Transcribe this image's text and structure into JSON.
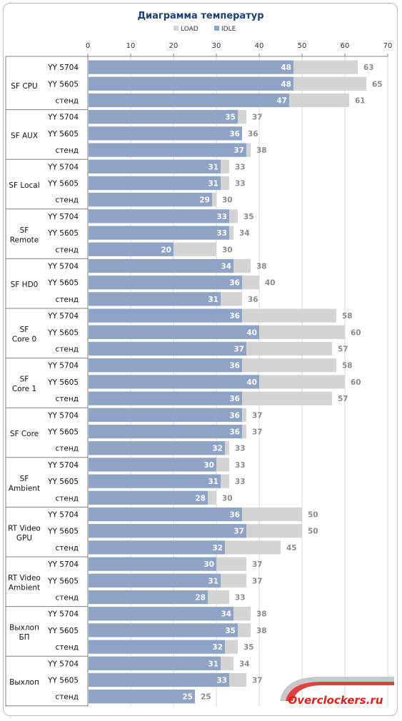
{
  "chart_data": {
    "type": "bar",
    "orientation": "horizontal",
    "stacked_overlay": true,
    "title": "Диаграмма температур",
    "legend": [
      "LOAD",
      "IDLE"
    ],
    "legend_position": "top",
    "xlim": [
      0,
      70
    ],
    "xticks": [
      0,
      10,
      20,
      30,
      40,
      50,
      60,
      70
    ],
    "grid": true,
    "colors": {
      "IDLE": "#8fa3c6",
      "LOAD": "#d4d4d4"
    },
    "groups": [
      {
        "name": "SF CPU",
        "rows": [
          {
            "label": "YY 5704",
            "idle": 48,
            "load": 63
          },
          {
            "label": "YY 5605",
            "idle": 48,
            "load": 65
          },
          {
            "label": "стенд",
            "idle": 47,
            "load": 61
          }
        ]
      },
      {
        "name": "SF AUX",
        "rows": [
          {
            "label": "YY 5704",
            "idle": 35,
            "load": 37
          },
          {
            "label": "YY 5605",
            "idle": 36,
            "load": 36
          },
          {
            "label": "стенд",
            "idle": 37,
            "load": 38
          }
        ]
      },
      {
        "name": "SF Local",
        "rows": [
          {
            "label": "YY 5704",
            "idle": 31,
            "load": 33
          },
          {
            "label": "YY 5605",
            "idle": 31,
            "load": 33
          },
          {
            "label": "стенд",
            "idle": 29,
            "load": 30
          }
        ]
      },
      {
        "name": "SF\nRemote",
        "rows": [
          {
            "label": "YY 5704",
            "idle": 33,
            "load": 35
          },
          {
            "label": "YY 5605",
            "idle": 33,
            "load": 34
          },
          {
            "label": "стенд",
            "idle": 20,
            "load": 30
          }
        ]
      },
      {
        "name": "SF HD0",
        "rows": [
          {
            "label": "YY 5704",
            "idle": 34,
            "load": 38
          },
          {
            "label": "YY 5605",
            "idle": 36,
            "load": 40
          },
          {
            "label": "стенд",
            "idle": 31,
            "load": 36
          }
        ]
      },
      {
        "name": "SF\nCore 0",
        "rows": [
          {
            "label": "YY 5704",
            "idle": 36,
            "load": 58
          },
          {
            "label": "YY 5605",
            "idle": 40,
            "load": 60
          },
          {
            "label": "стенд",
            "idle": 37,
            "load": 57
          }
        ]
      },
      {
        "name": "SF\nCore 1",
        "rows": [
          {
            "label": "YY 5704",
            "idle": 36,
            "load": 58
          },
          {
            "label": "YY 5605",
            "idle": 40,
            "load": 60
          },
          {
            "label": "стенд",
            "idle": 36,
            "load": 57
          }
        ]
      },
      {
        "name": "SF Core",
        "rows": [
          {
            "label": "YY 5704",
            "idle": 36,
            "load": 37
          },
          {
            "label": "YY 5605",
            "idle": 36,
            "load": 37
          },
          {
            "label": "стенд",
            "idle": 32,
            "load": 33
          }
        ]
      },
      {
        "name": "SF\nAmbient",
        "rows": [
          {
            "label": "YY 5704",
            "idle": 30,
            "load": 33
          },
          {
            "label": "YY 5605",
            "idle": 31,
            "load": 33
          },
          {
            "label": "стенд",
            "idle": 28,
            "load": 30
          }
        ]
      },
      {
        "name": "RT Video\nGPU",
        "rows": [
          {
            "label": "YY 5704",
            "idle": 36,
            "load": 50
          },
          {
            "label": "YY 5605",
            "idle": 37,
            "load": 50
          },
          {
            "label": "стенд",
            "idle": 32,
            "load": 45
          }
        ]
      },
      {
        "name": "RT Video\nAmbient",
        "rows": [
          {
            "label": "YY 5704",
            "idle": 30,
            "load": 37
          },
          {
            "label": "YY 5605",
            "idle": 31,
            "load": 37
          },
          {
            "label": "стенд",
            "idle": 28,
            "load": 33
          }
        ]
      },
      {
        "name": "Выхлоп\nБП",
        "rows": [
          {
            "label": "YY 5704",
            "idle": 34,
            "load": 38
          },
          {
            "label": "YY 5605",
            "idle": 35,
            "load": 38
          },
          {
            "label": "стенд",
            "idle": 32,
            "load": 35
          }
        ]
      },
      {
        "name": "Выхлоп",
        "rows": [
          {
            "label": "YY 5704",
            "idle": 31,
            "load": 34
          },
          {
            "label": "YY 5605",
            "idle": 33,
            "load": 37
          },
          {
            "label": "стенд",
            "idle": 25,
            "load": 25
          }
        ]
      }
    ]
  },
  "watermark": {
    "text": "Overclockers.ru"
  }
}
